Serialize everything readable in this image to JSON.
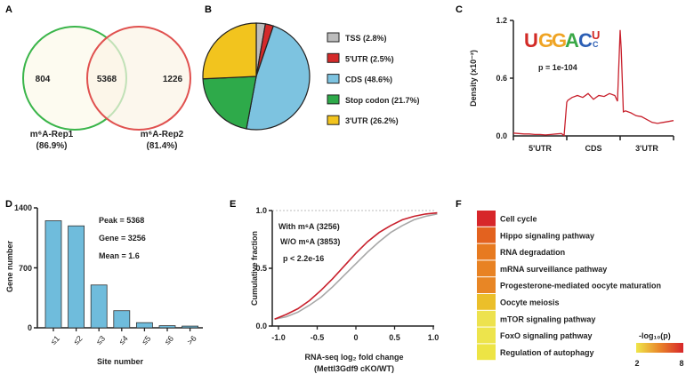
{
  "panels": {
    "a": "A",
    "b": "B",
    "c": "C",
    "d": "D",
    "e": "E",
    "f": "F"
  },
  "venn": {
    "left_only": "804",
    "overlap": "5368",
    "right_only": "1226",
    "left_label": "m⁶A-Rep1",
    "left_pct": "(86.9%)",
    "right_label": "m⁶A-Rep2",
    "right_pct": "(81.4%)",
    "left_color": "#3ab54a",
    "right_color": "#e0514f"
  },
  "chart_data": [
    {
      "type": "pie",
      "slices": [
        {
          "label": "TSS (2.8%)",
          "value": 2.8,
          "color": "#bcbcbc"
        },
        {
          "label": "5'UTR (2.5%)",
          "value": 2.5,
          "color": "#d42a2a"
        },
        {
          "label": "CDS (48.6%)",
          "value": 48.6,
          "color": "#7dc3e0"
        },
        {
          "label": "Stop codon (21.7%)",
          "value": 21.7,
          "color": "#2eaa4a"
        },
        {
          "label": "3'UTR (26.2%)",
          "value": 26.2,
          "color": "#f2c41e"
        }
      ]
    },
    {
      "type": "line",
      "ylabel": "Density (x10⁻²)",
      "yticks": [
        "0.0",
        "0.6",
        "1.2"
      ],
      "ylim": [
        0,
        1.2
      ],
      "regions": [
        "5'UTR",
        "CDS",
        "3'UTR"
      ],
      "motif": "UGGACU",
      "annotation": "p = 1e-104",
      "x": [
        0,
        0.1,
        0.2,
        0.3,
        0.4,
        0.5,
        0.6,
        0.7,
        0.8,
        0.9,
        0.95,
        1.0,
        1.02,
        1.1,
        1.2,
        1.3,
        1.4,
        1.5,
        1.6,
        1.7,
        1.8,
        1.9,
        1.95,
        2.0,
        2.02,
        2.06,
        2.1,
        2.2,
        2.3,
        2.4,
        2.5,
        2.6,
        2.7,
        2.8,
        2.9,
        3.0
      ],
      "y": [
        0.03,
        0.025,
        0.02,
        0.02,
        0.015,
        0.015,
        0.01,
        0.015,
        0.02,
        0.025,
        0.005,
        0.35,
        0.37,
        0.4,
        0.42,
        0.4,
        0.44,
        0.38,
        0.42,
        0.41,
        0.44,
        0.42,
        0.36,
        1.1,
        0.9,
        0.25,
        0.26,
        0.24,
        0.21,
        0.2,
        0.17,
        0.14,
        0.13,
        0.14,
        0.15,
        0.16
      ],
      "color": "#c8202c"
    },
    {
      "type": "bar",
      "categories": [
        "≤1",
        "≤2",
        "≤3",
        "≤4",
        "≤5",
        "≤6",
        ">6"
      ],
      "values": [
        1250,
        1190,
        500,
        200,
        60,
        25,
        20
      ],
      "ylim": [
        0,
        1400
      ],
      "yticks": [
        "0",
        "700",
        "1400"
      ],
      "xlabel": "Site number",
      "ylabel": "Gene number",
      "annotations": [
        "Peak = 5368",
        "Gene = 3256",
        "Mean = 1.6"
      ],
      "color": "#6fbcdc"
    },
    {
      "type": "line",
      "xlabel": "RNA-seq log₂ fold change",
      "xlabel2": "(Mettl3Gdf9 cKO/WT)",
      "ylabel": "Cumulative fraction",
      "xlim": [
        -1,
        1
      ],
      "ylim": [
        0,
        1
      ],
      "xticks": [
        "-1.0",
        "-0.5",
        "0",
        "0.5",
        "1.0"
      ],
      "yticks": [
        "0.0",
        "0.5",
        "1.0"
      ],
      "annotations": [
        "With m⁶A (3256)",
        "W/O m⁶A (3853)",
        "p < 2.2e-16"
      ],
      "series": [
        {
          "name": "With m6A",
          "color": "#c8202c",
          "x": [
            -1.05,
            -0.9,
            -0.75,
            -0.6,
            -0.45,
            -0.3,
            -0.15,
            0,
            0.15,
            0.3,
            0.45,
            0.6,
            0.75,
            0.9,
            1.05
          ],
          "y": [
            0.06,
            0.1,
            0.15,
            0.22,
            0.31,
            0.41,
            0.52,
            0.63,
            0.73,
            0.81,
            0.87,
            0.92,
            0.95,
            0.97,
            0.98
          ]
        },
        {
          "name": "W/O m6A",
          "color": "#a8a8a8",
          "x": [
            -1.05,
            -0.9,
            -0.75,
            -0.6,
            -0.45,
            -0.3,
            -0.15,
            0,
            0.15,
            0.3,
            0.45,
            0.6,
            0.75,
            0.9,
            1.05
          ],
          "y": [
            0.06,
            0.08,
            0.12,
            0.18,
            0.25,
            0.34,
            0.44,
            0.54,
            0.64,
            0.73,
            0.81,
            0.87,
            0.92,
            0.95,
            0.97
          ]
        }
      ]
    },
    {
      "type": "heatmap",
      "rows": [
        {
          "label": "Cell cycle",
          "color": "#d7262a"
        },
        {
          "label": "Hippo signaling pathway",
          "color": "#e3621f"
        },
        {
          "label": "RNA degradation",
          "color": "#e77a20"
        },
        {
          "label": "mRNA surveillance pathway",
          "color": "#e88223"
        },
        {
          "label": "Progesterone-mediated oocyte maturation",
          "color": "#e88625"
        },
        {
          "label": "Oocyte meiosis",
          "color": "#ebbf2a"
        },
        {
          "label": "mTOR signaling pathway",
          "color": "#ede24e"
        },
        {
          "label": "FoxO signaling pathway",
          "color": "#ede44c"
        },
        {
          "label": "Regulation of autophagy",
          "color": "#ede445"
        }
      ],
      "colorbar": {
        "title": "-log₁₀(p)",
        "min": "2",
        "max": "8"
      }
    }
  ]
}
